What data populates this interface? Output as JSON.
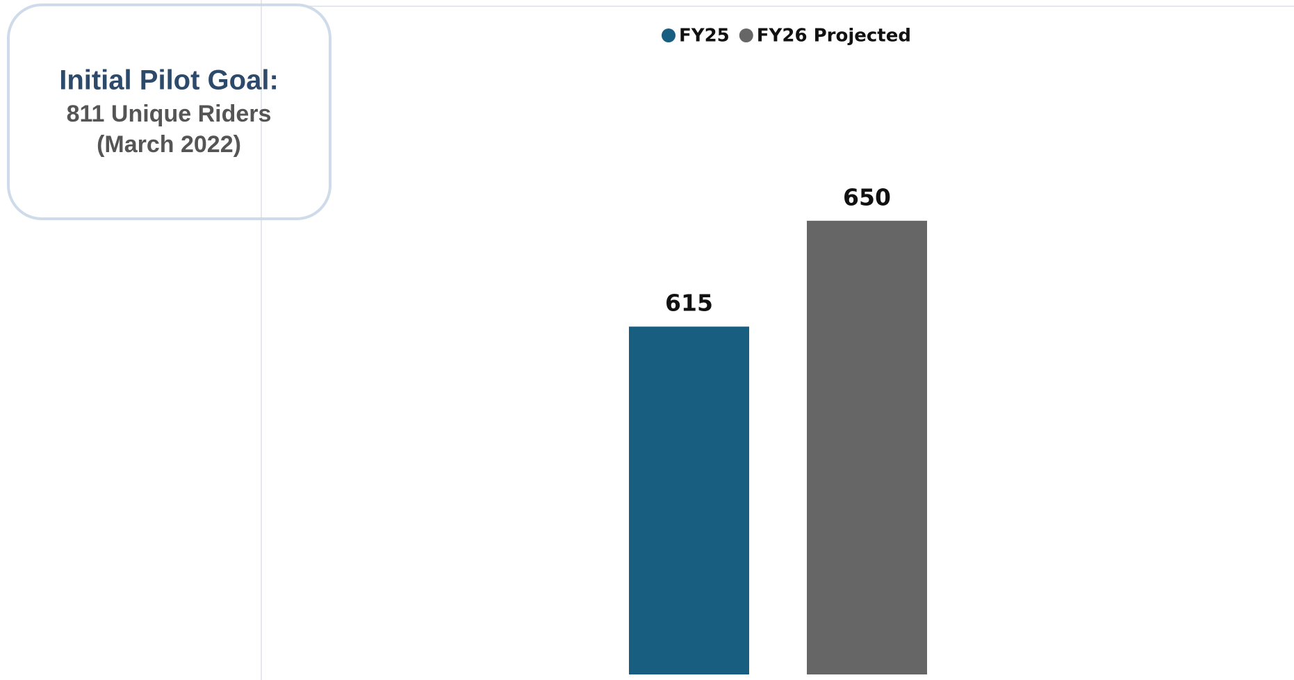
{
  "chart_data": {
    "type": "bar",
    "annotation": {
      "title": "Initial Pilot Goal:",
      "lines": [
        "811 Unique Riders",
        "(March 2022)"
      ]
    },
    "categories": [
      null
    ],
    "series": [
      {
        "name": "FY25",
        "color": "#175e80",
        "values": [
          615
        ]
      },
      {
        "name": "FY26 Projected",
        "color": "#666666",
        "values": [
          650
        ]
      }
    ],
    "ylim": [
      500,
      720
    ]
  }
}
